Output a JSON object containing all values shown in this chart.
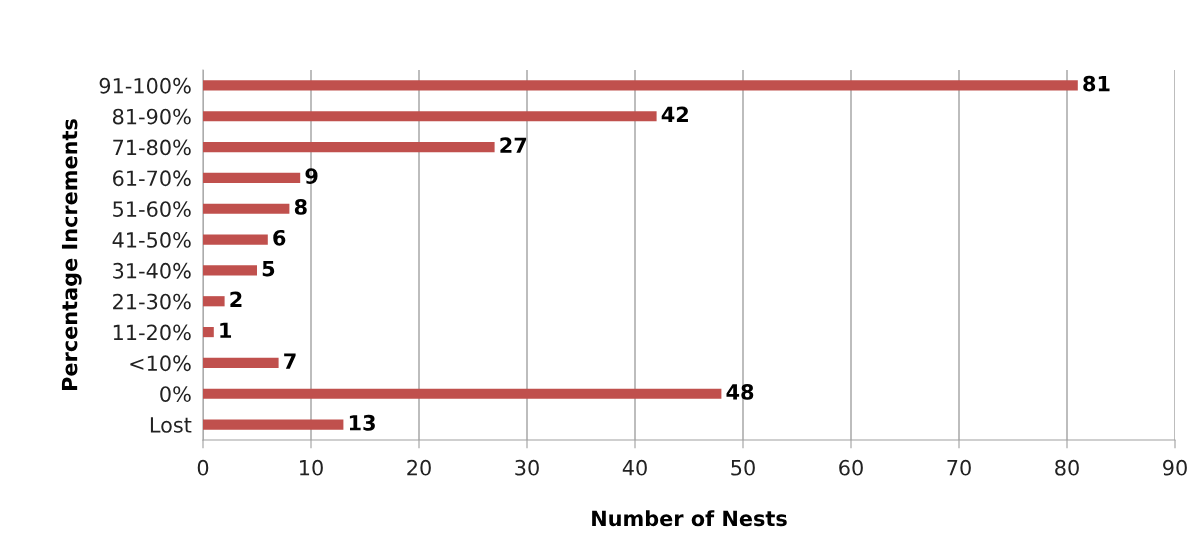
{
  "chart_data": {
    "type": "bar",
    "orientation": "horizontal",
    "xlabel": "Number of Nests",
    "ylabel": "Percentage Increments",
    "categories": [
      "91-100%",
      "81-90%",
      "71-80%",
      "61-70%",
      "51-60%",
      "41-50%",
      "31-40%",
      "21-30%",
      "11-20%",
      "<10%",
      "0%",
      "Lost"
    ],
    "values": [
      81,
      42,
      27,
      9,
      8,
      6,
      5,
      2,
      1,
      7,
      48,
      13
    ],
    "color": "#c0504d",
    "xlim": [
      0,
      90
    ],
    "xticks": [
      0,
      10,
      20,
      30,
      40,
      50,
      60,
      70,
      80,
      90
    ],
    "grid": "x",
    "data_labels": true
  }
}
